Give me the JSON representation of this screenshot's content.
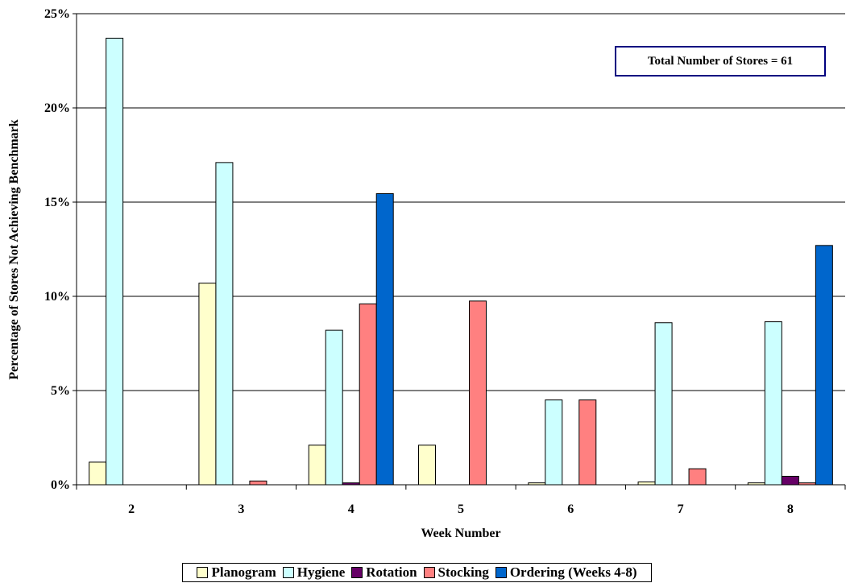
{
  "chart_data": {
    "type": "bar",
    "title": "",
    "xlabel": "Week Number",
    "ylabel": "Percentage of Stores Not Achieving Benchmark",
    "categories": [
      "2",
      "3",
      "4",
      "5",
      "6",
      "7",
      "8"
    ],
    "ylim": [
      0,
      25
    ],
    "yticks": [
      "0%",
      "5%",
      "10%",
      "15%",
      "20%",
      "25%"
    ],
    "ytick_values": [
      0,
      5,
      10,
      15,
      20,
      25
    ],
    "grid": true,
    "legend_position": "bottom",
    "annotation": "Total Number of Stores = 61",
    "series": [
      {
        "name": "Planogram",
        "color": "#FFFFCC",
        "values": [
          1.2,
          10.7,
          2.1,
          2.1,
          0.1,
          0.15,
          0.1
        ]
      },
      {
        "name": "Hygiene",
        "color": "#CCFFFF",
        "values": [
          23.7,
          17.1,
          8.2,
          0,
          4.5,
          8.6,
          8.65
        ]
      },
      {
        "name": "Rotation",
        "color": "#660066",
        "values": [
          0,
          0,
          0.1,
          0,
          0,
          0,
          0.45
        ]
      },
      {
        "name": "Stocking",
        "color": "#FF8080",
        "values": [
          0,
          0.2,
          9.6,
          9.75,
          4.5,
          0.85,
          0.1
        ]
      },
      {
        "name": "Ordering (Weeks 4-8)",
        "color": "#0066CC",
        "values": [
          0,
          0,
          15.45,
          0,
          0,
          0,
          12.7
        ]
      }
    ]
  }
}
